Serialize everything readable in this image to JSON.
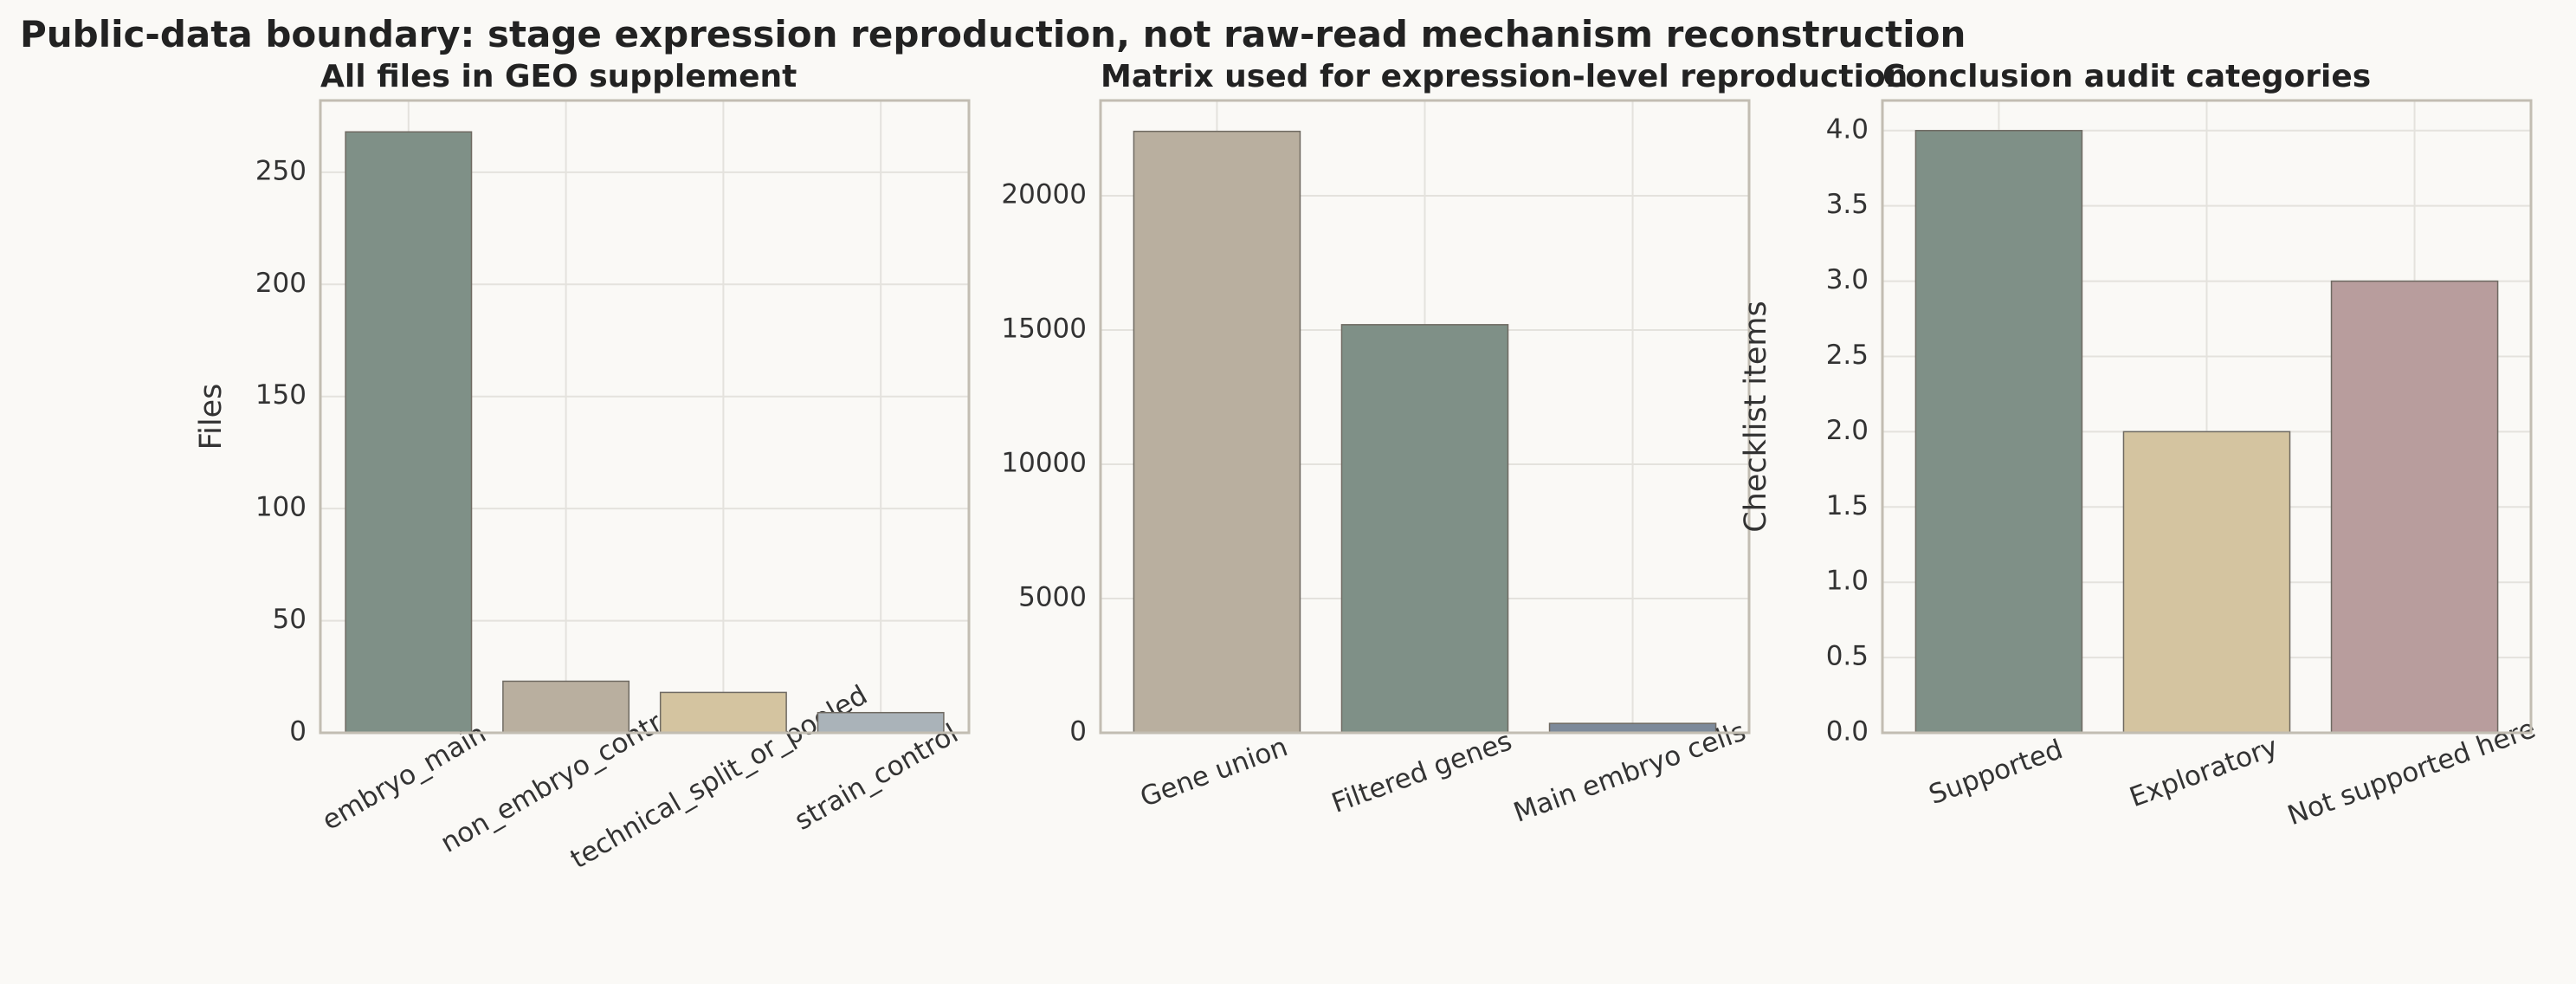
{
  "title": "Public-data boundary: stage expression reproduction, not raw-read mechanism reconstruction",
  "chart_data": [
    {
      "type": "bar",
      "title": "All files in GEO supplement",
      "ylabel": "Files",
      "categories": [
        "embryo_main",
        "non_embryo_control",
        "technical_split_or_pooled",
        "strain_control"
      ],
      "values": [
        268,
        23,
        18,
        9
      ],
      "colors": [
        "#7f9087",
        "#b9af9f",
        "#d4c4a0",
        "#aab3b9"
      ],
      "ylim": [
        0,
        282
      ],
      "yticks": [
        0,
        50,
        100,
        150,
        200,
        250
      ],
      "grid": true,
      "label_rotation": 30
    },
    {
      "type": "bar",
      "title": "Matrix used for expression-level reproduction",
      "categories": [
        "Gene union",
        "Filtered genes",
        "Main embryo cells"
      ],
      "values": [
        22400,
        15200,
        350
      ],
      "colors": [
        "#b9af9f",
        "#7f9087",
        "#7d8a9a"
      ],
      "ylim": [
        0,
        23550
      ],
      "yticks": [
        0,
        5000,
        10000,
        15000,
        20000
      ],
      "grid": true,
      "label_rotation": 20
    },
    {
      "type": "bar",
      "title": "Conclusion audit categories",
      "ylabel": "Checklist items",
      "categories": [
        "Supported",
        "Exploratory",
        "Not supported here"
      ],
      "values": [
        4,
        2,
        3
      ],
      "colors": [
        "#7f9087",
        "#d4c4a0",
        "#b89d9d"
      ],
      "ylim": [
        0,
        4.2
      ],
      "yticks": [
        {
          "value": 0,
          "label": "0.0"
        },
        {
          "value": 0.5,
          "label": "0.5"
        },
        {
          "value": 1,
          "label": "1.0"
        },
        {
          "value": 1.5,
          "label": "1.5"
        },
        {
          "value": 2,
          "label": "2.0"
        },
        {
          "value": 2.5,
          "label": "2.5"
        },
        {
          "value": 3,
          "label": "3.0"
        },
        {
          "value": 3.5,
          "label": "3.5"
        },
        {
          "value": 4,
          "label": "4.0"
        }
      ],
      "grid": true,
      "label_rotation": 20
    }
  ]
}
